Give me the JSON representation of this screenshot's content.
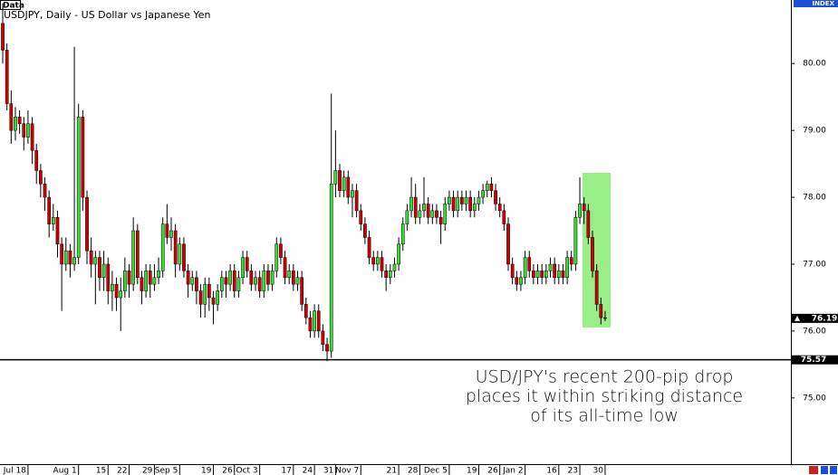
{
  "chart_data": {
    "type": "candlestick",
    "badge": "Data",
    "title": "USDJPY, Daily - US Dollar vs Japanese Yen",
    "axis_badge": "INDEX",
    "up_color": "#33dd33",
    "down_color": "#cc0000",
    "ylim": [
      74.01,
      80.95
    ],
    "xlim": [
      -0.65,
      187.1
    ],
    "yticks": [
      {
        "value": 75,
        "label": "75.00"
      },
      {
        "value": 76,
        "label": "76.00"
      },
      {
        "value": 77,
        "label": "77.00"
      },
      {
        "value": 78,
        "label": "78.00"
      },
      {
        "value": 79,
        "label": "79.00"
      },
      {
        "value": 80,
        "label": "80.00"
      }
    ],
    "xticks": [
      {
        "value": 6,
        "label": "Jul 18"
      },
      {
        "value": 18,
        "label": "Aug 1"
      },
      {
        "value": 25,
        "label": "15"
      },
      {
        "value": 30,
        "label": "22"
      },
      {
        "value": 36,
        "label": "29"
      },
      {
        "value": 42,
        "label": "Sep 5"
      },
      {
        "value": 50,
        "label": "19"
      },
      {
        "value": 55,
        "label": "26"
      },
      {
        "value": 61,
        "label": "Oct 3"
      },
      {
        "value": 69,
        "label": "17"
      },
      {
        "value": 74,
        "label": "24"
      },
      {
        "value": 79,
        "label": "31"
      },
      {
        "value": 85,
        "label": "Nov 7"
      },
      {
        "value": 94,
        "label": "21"
      },
      {
        "value": 99,
        "label": "28"
      },
      {
        "value": 106,
        "label": "Dec 5"
      },
      {
        "value": 113,
        "label": "19"
      },
      {
        "value": 118,
        "label": "26"
      },
      {
        "value": 124,
        "label": "Jan 2"
      },
      {
        "value": 132,
        "label": "16"
      },
      {
        "value": 137,
        "label": "23"
      },
      {
        "value": 143,
        "label": "30"
      }
    ],
    "hline": 75.57,
    "last_price": 76.19,
    "annotation": [
      "USD/JPY's recent 200-pip drop",
      "places it within striking distance",
      "of its all-time low"
    ],
    "candles": [
      [
        80.6,
        80.9,
        80.0,
        80.2
      ],
      [
        80.2,
        80.3,
        79.3,
        79.4
      ],
      [
        79.4,
        79.6,
        78.8,
        79.0
      ],
      [
        79.0,
        79.35,
        78.85,
        79.2
      ],
      [
        79.2,
        79.3,
        78.95,
        79.1
      ],
      [
        79.1,
        79.2,
        78.7,
        78.9
      ],
      [
        78.9,
        79.3,
        78.8,
        79.1
      ],
      [
        79.1,
        79.2,
        78.5,
        78.7
      ],
      [
        78.7,
        78.8,
        78.2,
        78.4
      ],
      [
        78.4,
        78.5,
        78.0,
        78.2
      ],
      [
        78.2,
        78.3,
        77.8,
        78.0
      ],
      [
        78.0,
        78.1,
        77.4,
        77.6
      ],
      [
        77.6,
        77.9,
        77.5,
        77.7
      ],
      [
        77.7,
        77.8,
        77.1,
        77.3
      ],
      [
        77.3,
        77.4,
        76.3,
        77.0
      ],
      [
        77.0,
        77.4,
        76.9,
        77.2
      ],
      [
        77.2,
        77.3,
        76.8,
        77.0
      ],
      [
        77.0,
        80.25,
        76.9,
        77.1
      ],
      [
        77.1,
        79.4,
        77.0,
        79.2
      ],
      [
        79.2,
        79.3,
        77.8,
        78.0
      ],
      [
        78.0,
        78.1,
        77.0,
        77.2
      ],
      [
        77.2,
        77.4,
        76.8,
        77.0
      ],
      [
        77.0,
        77.2,
        76.4,
        77.1
      ],
      [
        77.1,
        77.2,
        76.6,
        76.8
      ],
      [
        76.8,
        77.2,
        76.6,
        77.0
      ],
      [
        77.0,
        77.1,
        76.4,
        76.6
      ],
      [
        76.6,
        76.9,
        76.3,
        76.7
      ],
      [
        76.7,
        76.8,
        76.3,
        76.5
      ],
      [
        76.5,
        76.8,
        76.0,
        76.6
      ],
      [
        76.6,
        77.1,
        76.5,
        76.9
      ],
      [
        76.9,
        77.0,
        76.5,
        76.7
      ],
      [
        76.7,
        77.7,
        76.6,
        77.5
      ],
      [
        77.5,
        77.6,
        76.7,
        76.8
      ],
      [
        76.8,
        76.9,
        76.4,
        76.6
      ],
      [
        76.6,
        77.0,
        76.5,
        76.9
      ],
      [
        76.9,
        77.0,
        76.5,
        76.7
      ],
      [
        76.7,
        77.0,
        76.6,
        76.8
      ],
      [
        76.8,
        77.1,
        76.7,
        76.9
      ],
      [
        76.9,
        77.7,
        76.8,
        77.6
      ],
      [
        77.6,
        77.9,
        77.3,
        77.4
      ],
      [
        77.4,
        77.7,
        77.2,
        77.5
      ],
      [
        77.5,
        77.6,
        76.8,
        77.0
      ],
      [
        77.0,
        77.4,
        76.9,
        77.3
      ],
      [
        77.3,
        77.4,
        76.8,
        76.9
      ],
      [
        76.9,
        77.0,
        76.5,
        76.7
      ],
      [
        76.7,
        76.9,
        76.6,
        76.8
      ],
      [
        76.8,
        76.9,
        76.4,
        76.6
      ],
      [
        76.6,
        76.7,
        76.2,
        76.4
      ],
      [
        76.4,
        76.8,
        76.2,
        76.7
      ],
      [
        76.7,
        76.8,
        76.3,
        76.5
      ],
      [
        76.5,
        76.6,
        76.1,
        76.4
      ],
      [
        76.4,
        76.7,
        76.3,
        76.6
      ],
      [
        76.6,
        76.9,
        76.5,
        76.8
      ],
      [
        76.8,
        76.9,
        76.5,
        76.7
      ],
      [
        76.7,
        77.0,
        76.6,
        76.9
      ],
      [
        76.9,
        77.0,
        76.5,
        76.6
      ],
      [
        76.6,
        76.9,
        76.5,
        76.8
      ],
      [
        76.8,
        77.2,
        76.7,
        77.1
      ],
      [
        77.1,
        77.2,
        76.8,
        76.9
      ],
      [
        76.9,
        77.0,
        76.6,
        76.7
      ],
      [
        76.7,
        76.9,
        76.6,
        76.8
      ],
      [
        76.8,
        76.9,
        76.5,
        76.6
      ],
      [
        76.6,
        77.0,
        76.5,
        76.9
      ],
      [
        76.9,
        77.0,
        76.6,
        76.7
      ],
      [
        76.7,
        77.0,
        76.6,
        76.9
      ],
      [
        76.9,
        77.4,
        76.8,
        77.3
      ],
      [
        77.3,
        77.4,
        77.0,
        77.1
      ],
      [
        77.1,
        77.2,
        76.7,
        76.8
      ],
      [
        76.8,
        77.0,
        76.7,
        76.9
      ],
      [
        76.9,
        77.0,
        76.6,
        76.7
      ],
      [
        76.7,
        76.9,
        76.6,
        76.8
      ],
      [
        76.8,
        76.9,
        76.3,
        76.4
      ],
      [
        76.4,
        76.5,
        76.1,
        76.2
      ],
      [
        76.2,
        76.3,
        75.9,
        76.0
      ],
      [
        76.0,
        76.4,
        75.9,
        76.3
      ],
      [
        76.3,
        76.4,
        75.9,
        76.0
      ],
      [
        76.0,
        76.1,
        75.7,
        75.8
      ],
      [
        75.8,
        75.9,
        75.55,
        75.7
      ],
      [
        75.7,
        79.55,
        75.6,
        78.2
      ],
      [
        78.2,
        79.0,
        78.0,
        78.4
      ],
      [
        78.4,
        78.5,
        78.0,
        78.1
      ],
      [
        78.1,
        78.4,
        78.0,
        78.3
      ],
      [
        78.3,
        78.4,
        77.9,
        78.0
      ],
      [
        78.0,
        78.2,
        77.7,
        78.1
      ],
      [
        78.1,
        78.2,
        77.7,
        77.8
      ],
      [
        77.8,
        77.9,
        77.5,
        77.6
      ],
      [
        77.6,
        77.7,
        77.3,
        77.4
      ],
      [
        77.4,
        77.5,
        77.0,
        77.1
      ],
      [
        77.1,
        77.2,
        76.9,
        77.0
      ],
      [
        77.0,
        77.2,
        76.9,
        77.1
      ],
      [
        77.1,
        77.2,
        76.8,
        76.9
      ],
      [
        76.9,
        77.0,
        76.6,
        76.8
      ],
      [
        76.8,
        77.0,
        76.7,
        76.9
      ],
      [
        76.9,
        77.1,
        76.8,
        77.0
      ],
      [
        77.0,
        77.4,
        76.9,
        77.3
      ],
      [
        77.3,
        77.7,
        77.2,
        77.6
      ],
      [
        77.6,
        77.9,
        77.5,
        77.8
      ],
      [
        77.8,
        78.3,
        77.7,
        78.0
      ],
      [
        78.0,
        78.2,
        77.6,
        77.7
      ],
      [
        77.7,
        77.9,
        77.6,
        77.8
      ],
      [
        77.8,
        78.3,
        77.7,
        77.9
      ],
      [
        77.9,
        78.0,
        77.6,
        77.7
      ],
      [
        77.7,
        77.9,
        77.6,
        77.8
      ],
      [
        77.8,
        77.9,
        77.6,
        77.7
      ],
      [
        77.7,
        77.8,
        77.3,
        77.6
      ],
      [
        77.6,
        78.0,
        77.5,
        77.9
      ],
      [
        77.9,
        78.1,
        77.8,
        78.0
      ],
      [
        78.0,
        78.1,
        77.7,
        77.8
      ],
      [
        77.8,
        78.1,
        77.7,
        78.0
      ],
      [
        78.0,
        78.1,
        77.8,
        77.9
      ],
      [
        77.9,
        78.1,
        77.8,
        78.0
      ],
      [
        78.0,
        78.1,
        77.7,
        77.8
      ],
      [
        77.8,
        78.0,
        77.7,
        77.9
      ],
      [
        77.9,
        78.1,
        77.8,
        78.0
      ],
      [
        78.0,
        78.2,
        77.9,
        78.1
      ],
      [
        78.1,
        78.25,
        78.0,
        78.2
      ],
      [
        78.2,
        78.3,
        78.0,
        78.1
      ],
      [
        78.1,
        78.2,
        77.8,
        77.9
      ],
      [
        77.9,
        78.0,
        77.7,
        77.8
      ],
      [
        77.8,
        77.9,
        77.5,
        77.6
      ],
      [
        77.6,
        77.7,
        76.9,
        77.0
      ],
      [
        77.0,
        77.1,
        76.7,
        76.8
      ],
      [
        76.8,
        76.9,
        76.6,
        76.7
      ],
      [
        76.7,
        76.9,
        76.6,
        76.8
      ],
      [
        76.8,
        77.2,
        76.7,
        77.1
      ],
      [
        77.1,
        77.2,
        76.8,
        76.9
      ],
      [
        76.9,
        77.0,
        76.7,
        76.8
      ],
      [
        76.8,
        77.0,
        76.7,
        76.9
      ],
      [
        76.9,
        77.0,
        76.7,
        76.8
      ],
      [
        76.8,
        77.0,
        76.7,
        76.9
      ],
      [
        76.9,
        77.1,
        76.8,
        77.0
      ],
      [
        77.0,
        77.1,
        76.7,
        76.8
      ],
      [
        76.8,
        77.0,
        76.7,
        76.9
      ],
      [
        76.9,
        77.0,
        76.7,
        76.8
      ],
      [
        76.8,
        77.2,
        76.7,
        77.1
      ],
      [
        77.1,
        77.2,
        76.9,
        77.0
      ],
      [
        77.0,
        77.8,
        76.9,
        77.7
      ],
      [
        77.7,
        78.3,
        77.6,
        77.9
      ],
      [
        77.9,
        78.0,
        77.6,
        77.8
      ],
      [
        77.8,
        77.9,
        77.3,
        77.4
      ],
      [
        77.4,
        77.5,
        76.8,
        76.9
      ],
      [
        76.9,
        77.0,
        76.3,
        76.4
      ],
      [
        76.4,
        76.5,
        76.1,
        76.2
      ],
      [
        76.2,
        76.3,
        76.15,
        76.19
      ]
    ]
  }
}
